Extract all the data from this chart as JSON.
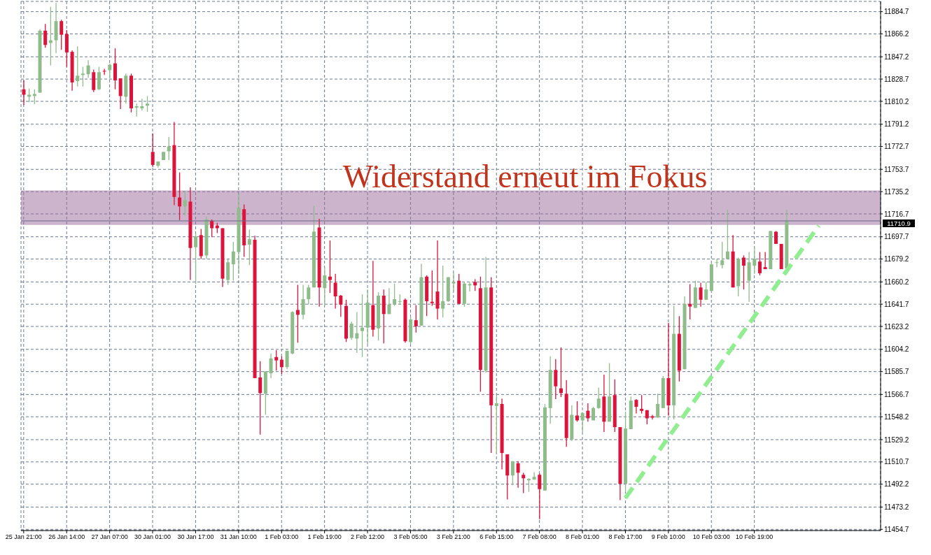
{
  "chart_data": {
    "type": "candlestick",
    "title": "Widerstand erneut im Fokus",
    "categories": [
      "25 Jan 21:00",
      null,
      null,
      null,
      null,
      null,
      null,
      null,
      "26 Jan 14:00",
      null,
      null,
      null,
      null,
      null,
      null,
      null,
      "27 Jan 07:00",
      null,
      null,
      null,
      null,
      null,
      null,
      null,
      "30 Jan 01:00",
      null,
      null,
      null,
      null,
      null,
      null,
      null,
      "30 Jan 17:00",
      null,
      null,
      null,
      null,
      null,
      null,
      null,
      "31 Jan 10:00",
      null,
      null,
      null,
      null,
      null,
      null,
      null,
      "1 Feb 03:00",
      null,
      null,
      null,
      null,
      null,
      null,
      null,
      "1 Feb 19:00",
      null,
      null,
      null,
      null,
      null,
      null,
      null,
      "2 Feb 12:00",
      null,
      null,
      null,
      null,
      null,
      null,
      null,
      "3 Feb 05:00",
      null,
      null,
      null,
      null,
      null,
      null,
      null,
      "3 Feb 21:00",
      null,
      null,
      null,
      null,
      null,
      null,
      null,
      "6 Feb 15:00",
      null,
      null,
      null,
      null,
      null,
      null,
      null,
      "7 Feb 08:00",
      null,
      null,
      null,
      null,
      null,
      null,
      null,
      "8 Feb 01:00",
      null,
      null,
      null,
      null,
      null,
      null,
      null,
      "8 Feb 17:00",
      null,
      null,
      null,
      null,
      null,
      null,
      null,
      "9 Feb 10:00",
      null,
      null,
      null,
      null,
      null,
      null,
      null,
      "10 Feb 03:00",
      null,
      null,
      null,
      null,
      null,
      null,
      null,
      "10 Feb 19:00",
      null,
      null,
      null,
      null,
      null,
      null,
      null,
      null,
      null,
      null,
      null,
      null,
      null,
      null,
      null,
      null,
      null,
      null,
      null,
      null,
      null,
      null,
      null
    ],
    "ohlc": [
      [
        11820.2,
        11827.6,
        11807.2,
        11815.7
      ],
      [
        11814.0,
        11820.8,
        11809.5,
        11815.7
      ],
      [
        11814.6,
        11820.2,
        11807.8,
        11816.3
      ],
      [
        11817.4,
        11870.0,
        11817.4,
        11868.9
      ],
      [
        11868.9,
        11874.5,
        11854.7,
        11857.0
      ],
      [
        11858.7,
        11888.7,
        11840.0,
        11860.9
      ],
      [
        11860.9,
        11892.1,
        11850.2,
        11876.8
      ],
      [
        11876.8,
        11877.9,
        11853.0,
        11865.5
      ],
      [
        11866.0,
        11869.4,
        11838.9,
        11850.8
      ],
      [
        11851.3,
        11852.5,
        11819.1,
        11825.9
      ],
      [
        11827.0,
        11855.9,
        11822.5,
        11831.5
      ],
      [
        11832.1,
        11838.9,
        11822.5,
        11833.2
      ],
      [
        11832.7,
        11844.5,
        11829.8,
        11840.0
      ],
      [
        11834.4,
        11836.6,
        11817.9,
        11819.6
      ],
      [
        11820.2,
        11838.9,
        11819.6,
        11834.4
      ],
      [
        11835.5,
        11837.2,
        11832.1,
        11834.9
      ],
      [
        11836.1,
        11841.7,
        11829.3,
        11840.6
      ],
      [
        11841.7,
        11854.2,
        11820.2,
        11827.6
      ],
      [
        11829.3,
        11829.3,
        11803.8,
        11814.6
      ],
      [
        11814.0,
        11833.2,
        11808.3,
        11831.5
      ],
      [
        11831.5,
        11833.2,
        11801.0,
        11804.4
      ],
      [
        11804.9,
        11808.3,
        11797.6,
        11806.1
      ],
      [
        11804.4,
        11812.3,
        11802.7,
        11806.1
      ],
      [
        11806.6,
        11814.6,
        11801.5,
        11808.3
      ],
      [
        11768.2,
        11783.4,
        11755.7,
        11757.4
      ],
      [
        11756.8,
        11760.2,
        11755.1,
        11760.2
      ],
      [
        11761.4,
        11768.2,
        11761.4,
        11768.2
      ],
      [
        11768.7,
        11780.6,
        11761.4,
        11772.7
      ],
      [
        11773.8,
        11793.1,
        11724.0,
        11730.8
      ],
      [
        11730.3,
        11751.2,
        11711.6,
        11722.9
      ],
      [
        11722.9,
        11735.9,
        11715.5,
        11728.0
      ],
      [
        11726.9,
        11738.7,
        11661.8,
        11688.4
      ],
      [
        11689.0,
        11700.3,
        11658.4,
        11698.0
      ],
      [
        11699.1,
        11704.2,
        11679.3,
        11681.6
      ],
      [
        11682.2,
        11714.4,
        11679.3,
        11712.1
      ],
      [
        11711.0,
        11712.1,
        11697.4,
        11704.8
      ],
      [
        11707.0,
        11709.3,
        11700.8,
        11704.8
      ],
      [
        11704.8,
        11704.8,
        11656.1,
        11662.9
      ],
      [
        11661.8,
        11679.3,
        11657.8,
        11676.5
      ],
      [
        11674.8,
        11693.5,
        11661.2,
        11685.5
      ],
      [
        11685.0,
        11733.6,
        11666.9,
        11721.8
      ],
      [
        11720.6,
        11724.6,
        11681.0,
        11690.6
      ],
      [
        11691.2,
        11703.7,
        11674.2,
        11695.7
      ],
      [
        11695.2,
        11698.6,
        11580.3,
        11580.3
      ],
      [
        11580.9,
        11594.4,
        11533.4,
        11567.9
      ],
      [
        11567.3,
        11585.9,
        11549.8,
        11585.9
      ],
      [
        11584.3,
        11600.7,
        11580.3,
        11596.7
      ],
      [
        11597.8,
        11603.5,
        11586.5,
        11595.0
      ],
      [
        11595.6,
        11598.4,
        11583.7,
        11589.4
      ],
      [
        11589.4,
        11603.0,
        11587.7,
        11603.0
      ],
      [
        11600.7,
        11635.8,
        11600.1,
        11635.2
      ],
      [
        11636.9,
        11657.8,
        11609.7,
        11632.9
      ],
      [
        11632.9,
        11657.8,
        11629.0,
        11645.9
      ],
      [
        11645.9,
        11657.8,
        11641.4,
        11655.6
      ],
      [
        11655.6,
        11723.5,
        11655.6,
        11702.0
      ],
      [
        11705.4,
        11712.7,
        11639.7,
        11655.6
      ],
      [
        11655.0,
        11672.5,
        11640.3,
        11665.7
      ],
      [
        11664.6,
        11694.6,
        11651.0,
        11661.8
      ],
      [
        11659.5,
        11666.9,
        11638.0,
        11648.2
      ],
      [
        11648.8,
        11649.3,
        11631.2,
        11641.4
      ],
      [
        11640.3,
        11645.4,
        11610.3,
        11613.1
      ],
      [
        11613.7,
        11627.3,
        11612.0,
        11625.6
      ],
      [
        11613.1,
        11635.2,
        11601.2,
        11617.6
      ],
      [
        11619.4,
        11649.9,
        11597.8,
        11622.2
      ],
      [
        11622.2,
        11653.9,
        11608.6,
        11643.1
      ],
      [
        11640.9,
        11677.6,
        11614.8,
        11620.5
      ],
      [
        11621.6,
        11651.6,
        11611.4,
        11648.8
      ],
      [
        11648.8,
        11653.9,
        11609.2,
        11633.5
      ],
      [
        11633.5,
        11655.0,
        11633.5,
        11641.4
      ],
      [
        11641.4,
        11658.9,
        11640.3,
        11645.9
      ],
      [
        11643.7,
        11649.9,
        11641.4,
        11644.2
      ],
      [
        11645.4,
        11646.5,
        11609.7,
        11610.9
      ],
      [
        11610.3,
        11631.2,
        11608.6,
        11629.0
      ],
      [
        11628.4,
        11640.9,
        11618.2,
        11623.3
      ],
      [
        11623.9,
        11675.4,
        11623.9,
        11664.1
      ],
      [
        11664.6,
        11665.7,
        11631.8,
        11644.2
      ],
      [
        11643.7,
        11669.7,
        11640.3,
        11642.6
      ],
      [
        11652.2,
        11694.6,
        11629.0,
        11638.0
      ],
      [
        11638.0,
        11673.7,
        11630.7,
        11644.2
      ],
      [
        11644.2,
        11664.1,
        11643.7,
        11664.1
      ],
      [
        11658.9,
        11667.4,
        11652.2,
        11660.1
      ],
      [
        11661.2,
        11666.9,
        11642.0,
        11642.0
      ],
      [
        11642.0,
        11660.1,
        11639.7,
        11658.9
      ],
      [
        11657.3,
        11660.1,
        11652.2,
        11658.4
      ],
      [
        11660.1,
        11662.4,
        11652.7,
        11657.3
      ],
      [
        11655.0,
        11664.6,
        11569.0,
        11587.1
      ],
      [
        11586.5,
        11681.0,
        11584.8,
        11655.6
      ],
      [
        11655.6,
        11664.1,
        11518.1,
        11557.7
      ],
      [
        11557.1,
        11565.6,
        11518.1,
        11559.4
      ],
      [
        11558.8,
        11563.3,
        11504.5,
        11518.1
      ],
      [
        11517.0,
        11517.0,
        11479.6,
        11499.4
      ],
      [
        11499.4,
        11511.3,
        11491.5,
        11511.3
      ],
      [
        11509.6,
        11511.3,
        11489.2,
        11501.7
      ],
      [
        11500.0,
        11501.7,
        11484.7,
        11497.1
      ],
      [
        11495.4,
        11497.1,
        11485.8,
        11496.6
      ],
      [
        11496.0,
        11502.2,
        11496.0,
        11498.3
      ],
      [
        11500.0,
        11501.1,
        11463.2,
        11488.1
      ],
      [
        11486.9,
        11558.8,
        11486.9,
        11556.0
      ],
      [
        11555.4,
        11598.4,
        11542.4,
        11587.1
      ],
      [
        11587.1,
        11596.1,
        11562.8,
        11573.5
      ],
      [
        11571.8,
        11605.8,
        11564.5,
        11567.9
      ],
      [
        11567.3,
        11578.6,
        11523.2,
        11530.5
      ],
      [
        11529.4,
        11557.7,
        11528.2,
        11549.8
      ],
      [
        11549.2,
        11561.1,
        11544.1,
        11545.2
      ],
      [
        11545.2,
        11552.0,
        11535.6,
        11551.4
      ],
      [
        11553.2,
        11559.4,
        11544.1,
        11546.9
      ],
      [
        11545.2,
        11556.5,
        11545.2,
        11555.4
      ],
      [
        11555.4,
        11572.4,
        11554.8,
        11563.3
      ],
      [
        11565.0,
        11583.1,
        11535.6,
        11544.1
      ],
      [
        11544.1,
        11592.8,
        11544.1,
        11565.0
      ],
      [
        11566.2,
        11579.2,
        11535.6,
        11539.6
      ],
      [
        11539.6,
        11539.6,
        11479.0,
        11492.6
      ],
      [
        11492.6,
        11552.6,
        11485.8,
        11538.4
      ],
      [
        11537.9,
        11565.0,
        11537.9,
        11561.6
      ],
      [
        11562.2,
        11562.8,
        11550.9,
        11556.5
      ],
      [
        11554.8,
        11566.2,
        11550.9,
        11553.1
      ],
      [
        11553.7,
        11553.7,
        11541.9,
        11546.9
      ],
      [
        11548.6,
        11549.8,
        11545.8,
        11547.5
      ],
      [
        11547.5,
        11567.3,
        11547.5,
        11558.8
      ],
      [
        11555.4,
        11582.0,
        11555.4,
        11580.3
      ],
      [
        11580.3,
        11626.2,
        11549.2,
        11557.7
      ],
      [
        11557.7,
        11640.3,
        11545.8,
        11617.1
      ],
      [
        11617.1,
        11631.8,
        11577.5,
        11586.5
      ],
      [
        11587.7,
        11648.2,
        11587.7,
        11642.0
      ],
      [
        11642.0,
        11658.4,
        11629.0,
        11639.7
      ],
      [
        11638.6,
        11661.2,
        11638.6,
        11655.6
      ],
      [
        11655.6,
        11659.5,
        11639.7,
        11645.4
      ],
      [
        11645.4,
        11660.1,
        11645.4,
        11653.9
      ],
      [
        11652.7,
        11675.4,
        11652.7,
        11674.8
      ],
      [
        11676.5,
        11679.3,
        11672.5,
        11676.5
      ],
      [
        11674.2,
        11693.5,
        11671.4,
        11678.2
      ],
      [
        11679.3,
        11720.1,
        11679.3,
        11685.5
      ],
      [
        11685.5,
        11699.1,
        11655.6,
        11655.6
      ],
      [
        11656.7,
        11680.4,
        11648.2,
        11679.3
      ],
      [
        11680.4,
        11682.2,
        11653.9,
        11673.7
      ],
      [
        11661.2,
        11685.0,
        11643.7,
        11676.5
      ],
      [
        11673.7,
        11689.5,
        11666.9,
        11679.3
      ],
      [
        11677.1,
        11685.0,
        11665.7,
        11667.4
      ],
      [
        11672.5,
        11685.0,
        11670.8,
        11670.8
      ],
      [
        11670.8,
        11702.5,
        11670.8,
        11702.5
      ],
      [
        11701.9,
        11702.5,
        11691.8,
        11691.8
      ],
      [
        11691.8,
        11691.8,
        11670.8,
        11670.8
      ],
      [
        11671.4,
        11720.1,
        11671.4,
        11710.9
      ],
      null,
      null,
      null,
      null,
      null,
      null,
      null,
      null,
      null,
      null,
      null,
      null,
      null,
      null,
      null,
      null,
      null
    ],
    "colors": [
      "#dc143c",
      "#8fbc8b",
      "#8fbc8b",
      "#8fbc8b",
      "#dc143c",
      "#8fbc8b",
      "#8fbc8b",
      "#dc143c",
      "#dc143c",
      "#dc143c",
      "#8fbc8b",
      "#8fbc8b",
      "#8fbc8b",
      "#dc143c",
      "#8fbc8b",
      "#dc143c",
      "#8fbc8b",
      "#dc143c",
      "#dc143c",
      "#8fbc8b",
      "#dc143c",
      "#8fbc8b",
      "#8fbc8b",
      "#8fbc8b",
      "#dc143c",
      "#8fbc8b",
      "#8fbc8b",
      "#8fbc8b",
      "#dc143c",
      "#dc143c",
      "#8fbc8b",
      "#dc143c",
      "#8fbc8b",
      "#dc143c",
      "#8fbc8b",
      "#dc143c",
      "#dc143c",
      "#dc143c",
      "#8fbc8b",
      "#8fbc8b",
      "#8fbc8b",
      "#dc143c",
      "#8fbc8b",
      "#dc143c",
      "#dc143c",
      "#8fbc8b",
      "#8fbc8b",
      "#dc143c",
      "#dc143c",
      "#8fbc8b",
      "#8fbc8b",
      "#dc143c",
      "#8fbc8b",
      "#8fbc8b",
      "#8fbc8b",
      "#dc143c",
      "#8fbc8b",
      "#dc143c",
      "#dc143c",
      "#dc143c",
      "#dc143c",
      "#8fbc8b",
      "#8fbc8b",
      "#8fbc8b",
      "#8fbc8b",
      "#dc143c",
      "#8fbc8b",
      "#dc143c",
      "#8fbc8b",
      "#8fbc8b",
      "#8fbc8b",
      "#dc143c",
      "#8fbc8b",
      "#dc143c",
      "#8fbc8b",
      "#dc143c",
      "#dc143c",
      "#dc143c",
      "#8fbc8b",
      "#8fbc8b",
      "#8fbc8b",
      "#dc143c",
      "#8fbc8b",
      "#8fbc8b",
      "#dc143c",
      "#dc143c",
      "#8fbc8b",
      "#dc143c",
      "#8fbc8b",
      "#dc143c",
      "#dc143c",
      "#8fbc8b",
      "#dc143c",
      "#dc143c",
      "#8fbc8b",
      "#8fbc8b",
      "#dc143c",
      "#8fbc8b",
      "#8fbc8b",
      "#dc143c",
      "#dc143c",
      "#dc143c",
      "#8fbc8b",
      "#dc143c",
      "#8fbc8b",
      "#dc143c",
      "#8fbc8b",
      "#8fbc8b",
      "#dc143c",
      "#8fbc8b",
      "#dc143c",
      "#dc143c",
      "#8fbc8b",
      "#8fbc8b",
      "#dc143c",
      "#dc143c",
      "#dc143c",
      "#dc143c",
      "#8fbc8b",
      "#8fbc8b",
      "#dc143c",
      "#8fbc8b",
      "#dc143c",
      "#8fbc8b",
      "#dc143c",
      "#8fbc8b",
      "#dc143c",
      "#8fbc8b",
      "#8fbc8b",
      "#8fbc8b",
      "#8fbc8b",
      "#8fbc8b",
      "#dc143c",
      "#8fbc8b",
      "#dc143c",
      "#8fbc8b",
      "#8fbc8b",
      "#dc143c",
      "#dc143c",
      "#8fbc8b",
      "#dc143c",
      "#dc143c",
      "#8fbc8b",
      null,
      null,
      null,
      null,
      null,
      null,
      null,
      null,
      null,
      null,
      null,
      null,
      null,
      null,
      null,
      null,
      null
    ],
    "series": [
      {
        "type": "line",
        "color": "#90ee90",
        "line_style": "dashed",
        "values": [
          null,
          null,
          null,
          null,
          null,
          null,
          null,
          null,
          null,
          null,
          null,
          null,
          null,
          null,
          null,
          null,
          null,
          null,
          null,
          null,
          null,
          null,
          null,
          null,
          null,
          null,
          null,
          null,
          null,
          null,
          null,
          null,
          null,
          null,
          null,
          null,
          null,
          null,
          null,
          null,
          null,
          null,
          null,
          null,
          null,
          null,
          null,
          null,
          null,
          null,
          null,
          null,
          null,
          null,
          null,
          null,
          null,
          null,
          null,
          null,
          null,
          null,
          null,
          null,
          null,
          null,
          null,
          null,
          null,
          null,
          null,
          null,
          null,
          null,
          null,
          null,
          null,
          null,
          null,
          null,
          null,
          null,
          null,
          null,
          null,
          null,
          null,
          null,
          null,
          null,
          null,
          null,
          null,
          null,
          null,
          null,
          null,
          null,
          null,
          null,
          null,
          null,
          null,
          null,
          null,
          null,
          null,
          null,
          null,
          null,
          null,
          null,
          11480.7,
          null,
          null,
          null,
          null,
          null,
          null,
          null,
          null,
          null,
          null,
          null,
          null,
          null,
          null,
          null,
          null,
          null,
          null,
          null,
          null,
          null,
          null,
          null,
          null,
          null,
          null,
          null,
          null,
          null,
          null,
          null,
          null,
          null,
          null,
          null,
          11707.0,
          null,
          null,
          null,
          null,
          null,
          null,
          null,
          null,
          null,
          null,
          null
        ]
      }
    ],
    "ylim": [
      11453.7,
      11893.2
    ],
    "yticks": [
      11454.7,
      11473.2,
      11492.2,
      11510.7,
      11529.2,
      11548.2,
      11566.7,
      11585.7,
      11604.2,
      11623.2,
      11641.7,
      11660.2,
      11679.2,
      11697.7,
      11716.7,
      11735.2,
      11753.7,
      11772.7,
      11791.2,
      11810.2,
      11828.7,
      11847.2,
      11866.2,
      11884.7
    ],
    "grid": true,
    "bands": [
      {
        "axis": "y",
        "from": 11707.6,
        "to": 11736.1,
        "color": "#9b6a9b"
      }
    ],
    "ref_lines": [
      {
        "axis": "y",
        "value": 11710.9,
        "label": "11710.9",
        "color": "#6a6a8a"
      }
    ]
  }
}
